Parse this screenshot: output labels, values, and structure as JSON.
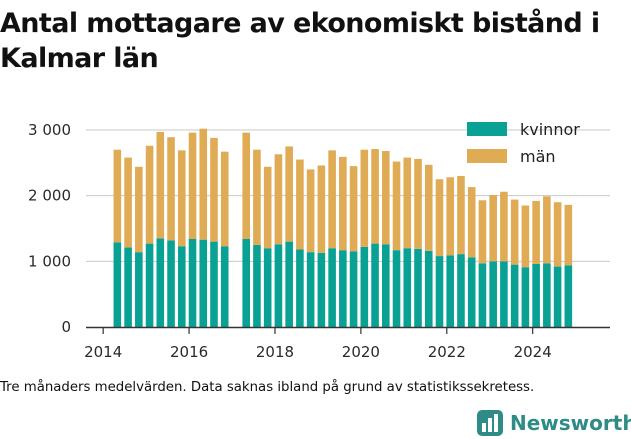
{
  "chart_data": {
    "type": "bar",
    "stacked": true,
    "title": "Antal mottagare av ekonomiskt bistånd i Kalmar län",
    "x": [
      2014.33,
      2014.58,
      2014.83,
      2015.08,
      2015.33,
      2015.58,
      2015.83,
      2016.08,
      2016.33,
      2016.58,
      2016.83,
      2017.33,
      2017.58,
      2017.83,
      2018.08,
      2018.33,
      2018.58,
      2018.83,
      2019.08,
      2019.33,
      2019.58,
      2019.83,
      2020.08,
      2020.33,
      2020.58,
      2020.83,
      2021.08,
      2021.33,
      2021.58,
      2021.83,
      2022.08,
      2022.33,
      2022.58,
      2022.83,
      2023.08,
      2023.33,
      2023.58,
      2023.83,
      2024.08,
      2024.33,
      2024.58,
      2024.83
    ],
    "series": [
      {
        "name": "kvinnor",
        "color": "#0aa195",
        "values": [
          1290,
          1210,
          1140,
          1270,
          1350,
          1320,
          1230,
          1340,
          1330,
          1300,
          1230,
          1340,
          1250,
          1200,
          1260,
          1300,
          1180,
          1140,
          1130,
          1200,
          1170,
          1150,
          1220,
          1270,
          1260,
          1170,
          1200,
          1190,
          1160,
          1080,
          1090,
          1110,
          1060,
          970,
          1000,
          1000,
          950,
          910,
          960,
          970,
          920,
          940
        ]
      },
      {
        "name": "män",
        "color": "#dfab55",
        "values": [
          1410,
          1370,
          1300,
          1490,
          1620,
          1570,
          1460,
          1620,
          1690,
          1580,
          1440,
          1620,
          1450,
          1240,
          1370,
          1450,
          1370,
          1260,
          1330,
          1490,
          1420,
          1300,
          1480,
          1440,
          1420,
          1350,
          1380,
          1370,
          1310,
          1170,
          1190,
          1190,
          1070,
          960,
          1010,
          1060,
          990,
          940,
          960,
          1020,
          980,
          920
        ]
      }
    ],
    "xlim": [
      2013.6,
      2025.8
    ],
    "ylim": [
      0,
      3000
    ],
    "xticks": [
      2014,
      2016,
      2018,
      2020,
      2022,
      2024
    ],
    "yticks": [
      0,
      1000,
      2000,
      3000
    ],
    "ytick_labels": [
      "0",
      "1 000",
      "2 000",
      "3 000"
    ],
    "grid": "y",
    "legend_position": "top-right"
  },
  "caption": "Tre månaders medelvärden. Data saknas ibland på grund av statistikssekretess.",
  "brand": {
    "name": "Newsworthy",
    "icon": "bar-chart-logo-icon",
    "color": "#2e8b86"
  }
}
